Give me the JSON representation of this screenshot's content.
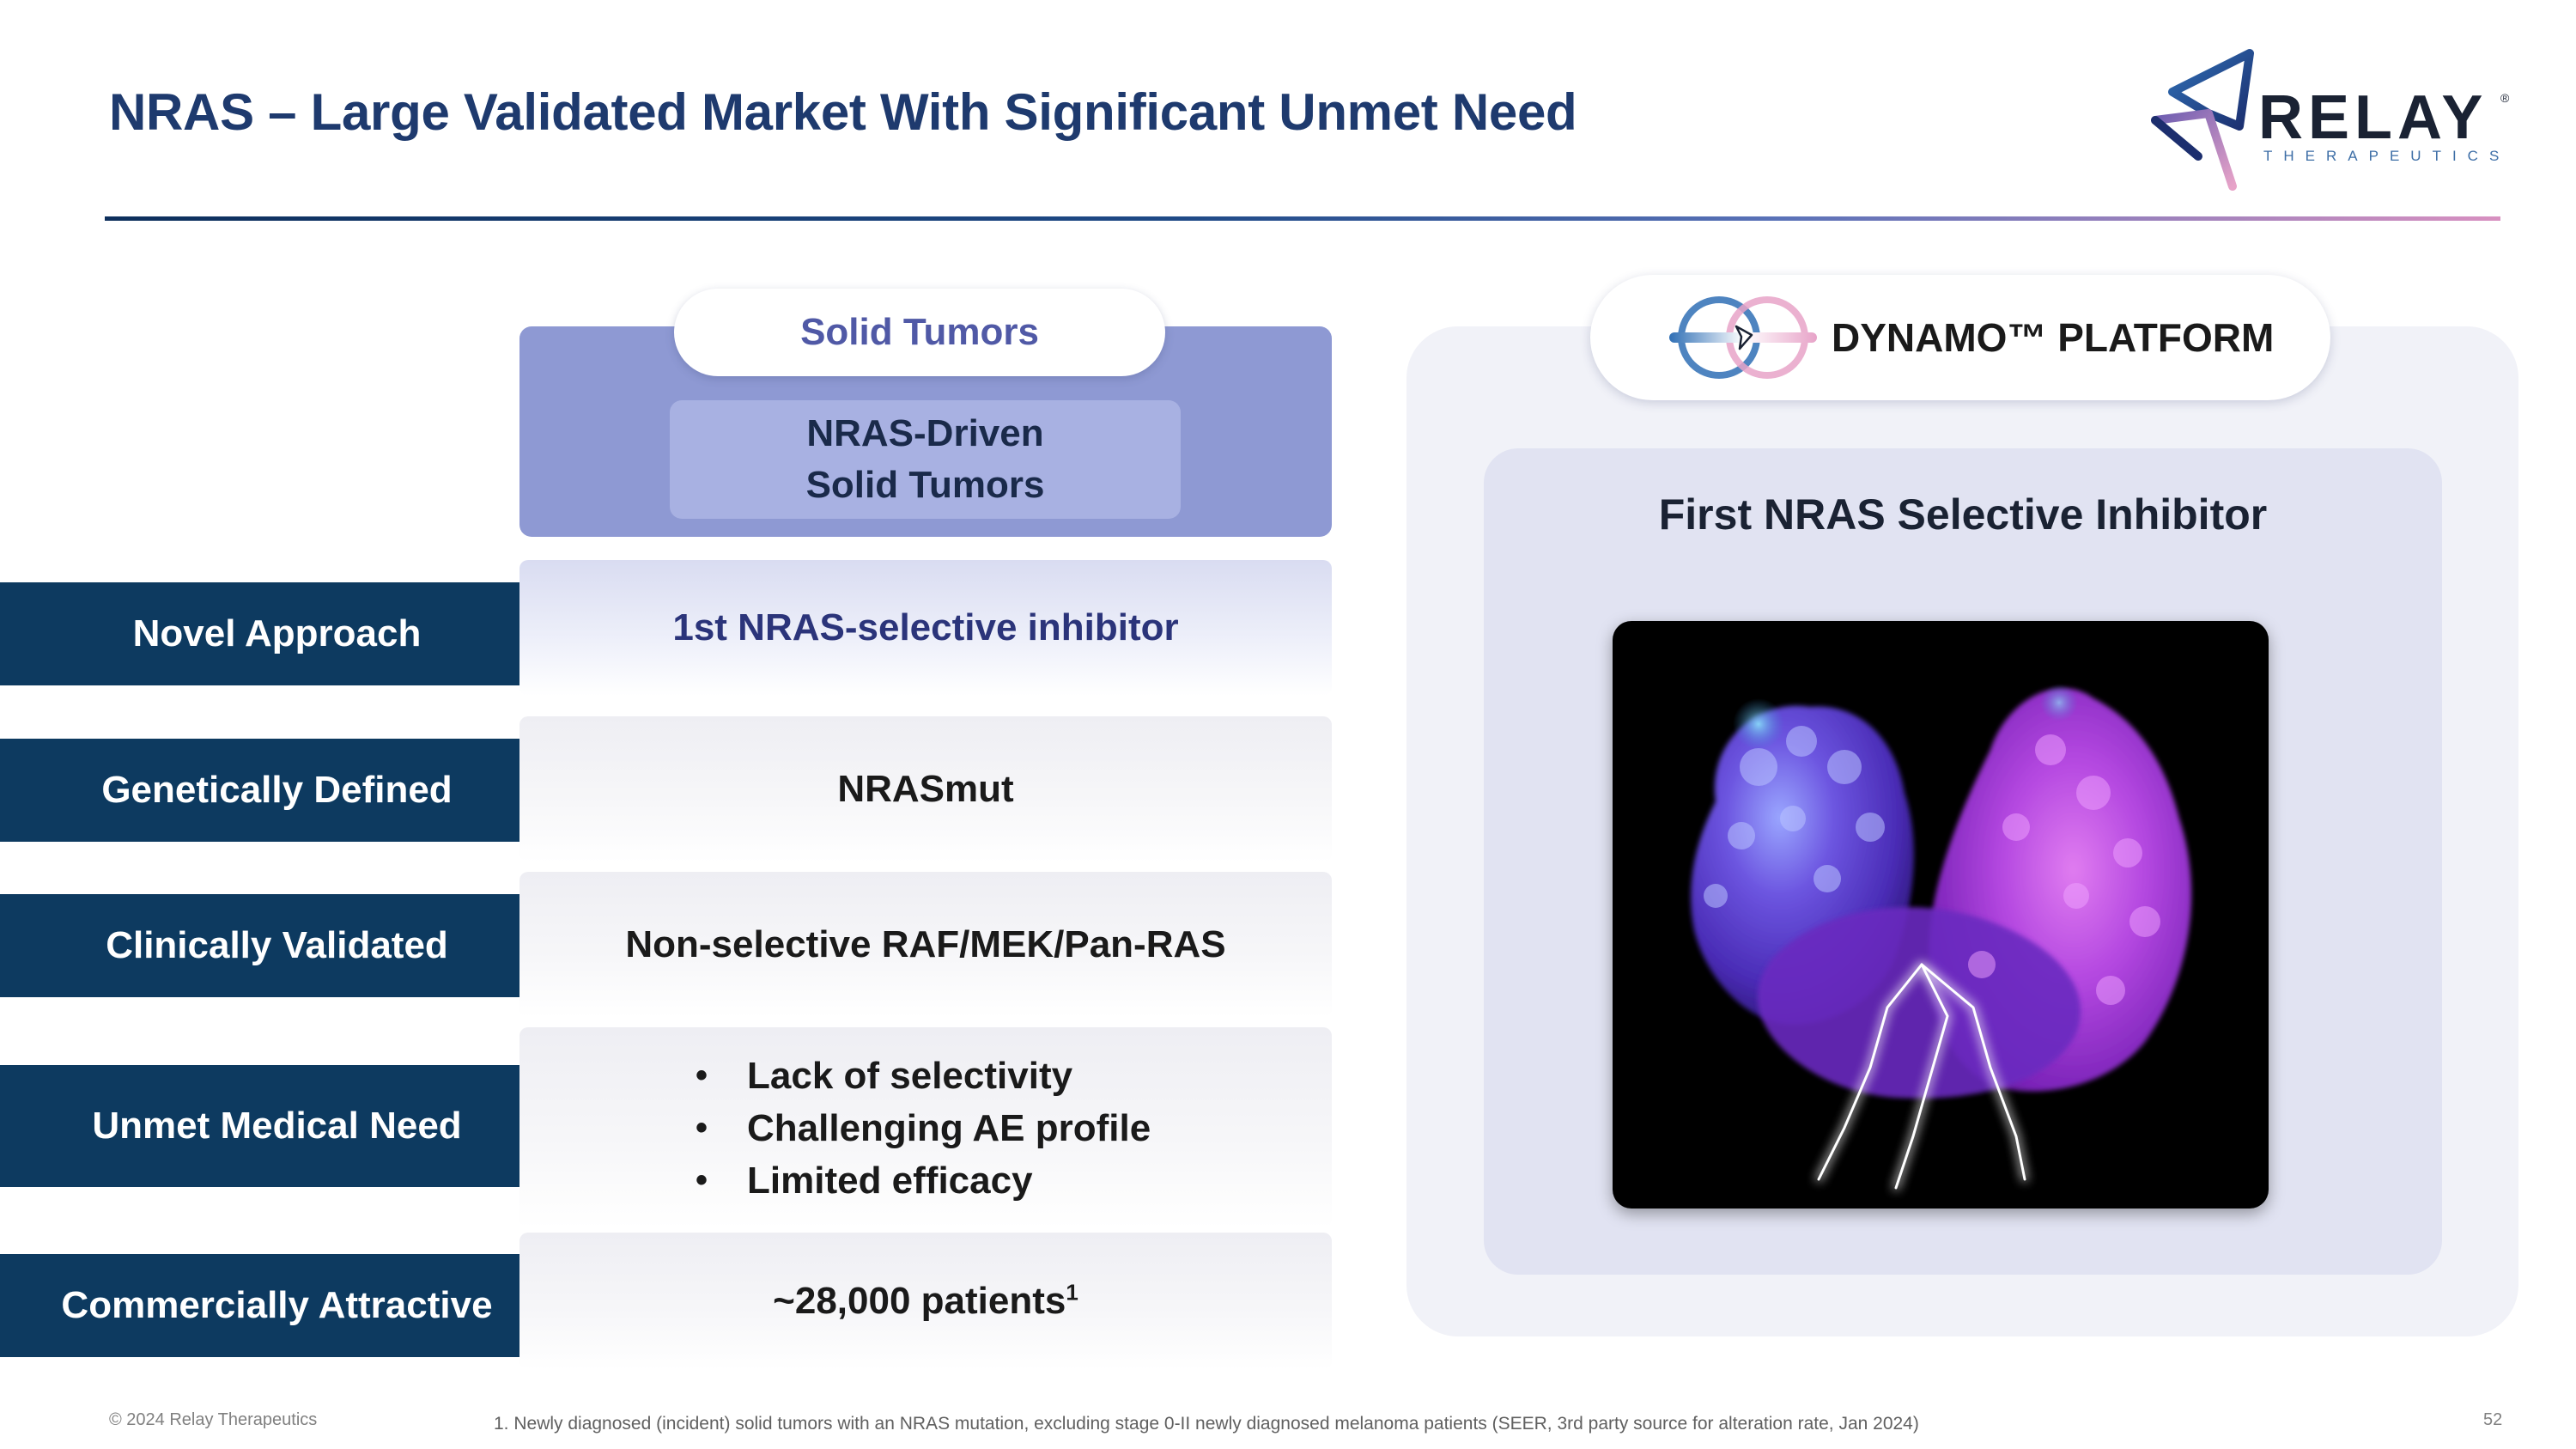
{
  "title": "NRAS – Large Validated Market With Significant Unmet Need",
  "logo": {
    "word": "RELAY",
    "registered": "®",
    "sub": "THERAPEUTICS"
  },
  "left_column": {
    "header_pill": "Solid Tumors",
    "header_box_lines": [
      "NRAS-Driven",
      "Solid Tumors"
    ]
  },
  "rows": [
    {
      "label": "Novel Approach",
      "value": "1st NRAS-selective inhibitor"
    },
    {
      "label": "Genetically Defined",
      "value": "NRASmut"
    },
    {
      "label": "Clinically Validated",
      "value": "Non-selective RAF/MEK/Pan-RAS"
    },
    {
      "label": "Unmet Medical Need",
      "bullets": [
        "Lack of selectivity",
        "Challenging AE profile",
        "Limited efficacy"
      ]
    },
    {
      "label": "Commercially Attractive",
      "value": "~28,000 patients",
      "superscript": "1"
    }
  ],
  "bullet_glyph": "•",
  "right_panel": {
    "platform_label": "DYNAMO™ PLATFORM",
    "heading": "First NRAS Selective Inhibitor"
  },
  "footer": {
    "copyright": "© 2024 Relay Therapeutics",
    "footnote": "1. Newly diagnosed (incident) solid tumors with an NRAS mutation, excluding stage 0-II newly diagnosed melanoma patients (SEER, 3rd party source for alteration rate, Jan 2024)",
    "page_number": "52"
  },
  "colors": {
    "title": "#1e3a6e",
    "row_label_bg": "#0d3a60",
    "solid_tumors_box": "#8e99d3",
    "accent_pink": "#e7a3c8",
    "accent_blue": "#2f6fb5"
  }
}
